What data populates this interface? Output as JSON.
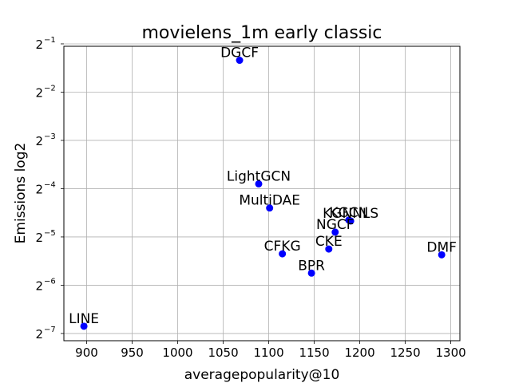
{
  "chart_data": {
    "type": "scatter",
    "title": "movielens_1m early classic",
    "xlabel": "averagepopularity@10",
    "ylabel": "Emissions log2",
    "xlim": [
      875,
      1310
    ],
    "ylim_log2": [
      -7.15,
      -1.05
    ],
    "yscale": "log2",
    "grid": true,
    "marker_color": "#0000ff",
    "x_ticks": [
      900,
      950,
      1000,
      1050,
      1100,
      1150,
      1200,
      1250,
      1300
    ],
    "y_ticks": [
      {
        "base": "2",
        "exp": "−1",
        "value": -1
      },
      {
        "base": "2",
        "exp": "−2",
        "value": -2
      },
      {
        "base": "2",
        "exp": "−3",
        "value": -3
      },
      {
        "base": "2",
        "exp": "−4",
        "value": -4
      },
      {
        "base": "2",
        "exp": "−5",
        "value": -5
      },
      {
        "base": "2",
        "exp": "−6",
        "value": -6
      },
      {
        "base": "2",
        "exp": "−7",
        "value": -7
      }
    ],
    "points": [
      {
        "label": "DGCF",
        "x": 1068,
        "log2_y": -1.34
      },
      {
        "label": "LightGCN",
        "x": 1089,
        "log2_y": -3.9
      },
      {
        "label": "MultiDAE",
        "x": 1101,
        "log2_y": -4.4
      },
      {
        "label": "KGCN",
        "x": 1188,
        "log2_y": -4.65
      },
      {
        "label": "KGNNLS",
        "x": 1190,
        "log2_y": -4.67
      },
      {
        "label": "NGCF",
        "x": 1173,
        "log2_y": -4.9
      },
      {
        "label": "CKE",
        "x": 1166,
        "log2_y": -5.25
      },
      {
        "label": "CFKG",
        "x": 1115,
        "log2_y": -5.35
      },
      {
        "label": "DMF",
        "x": 1290,
        "log2_y": -5.37
      },
      {
        "label": "BPR",
        "x": 1147,
        "log2_y": -5.75
      },
      {
        "label": "LINE",
        "x": 897,
        "log2_y": -6.85
      }
    ]
  }
}
